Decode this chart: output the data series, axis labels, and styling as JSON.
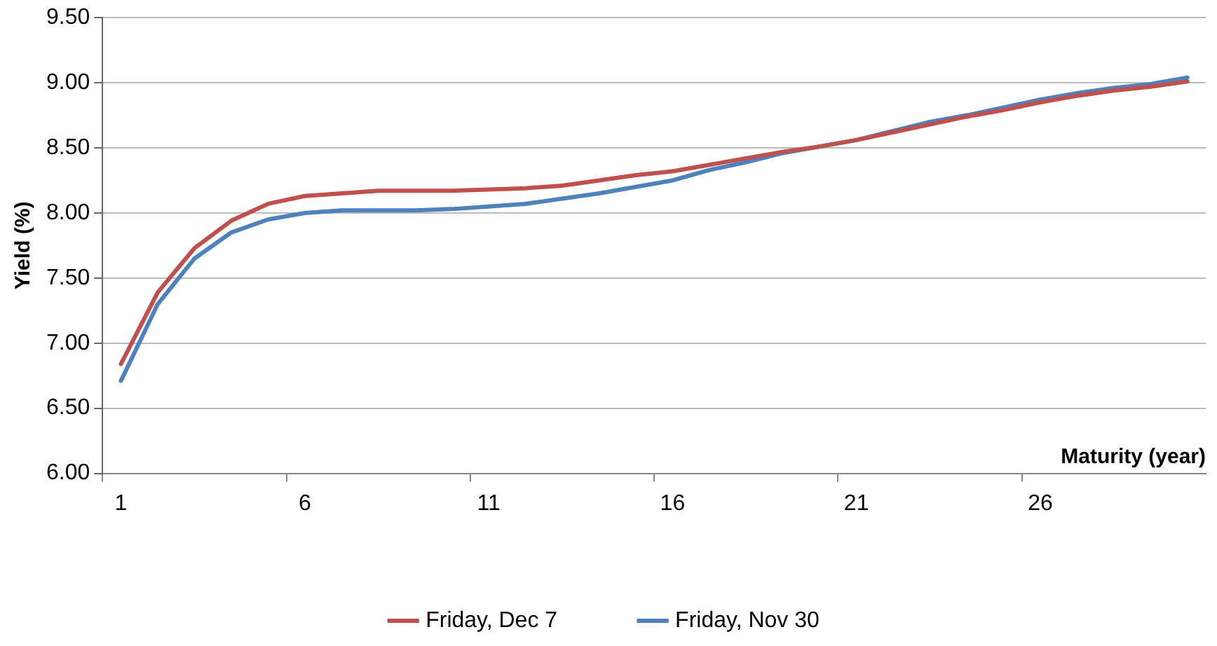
{
  "chart_data": {
    "type": "line",
    "xlabel": "Maturity (year)",
    "ylabel": "Yield (%)",
    "categories": [
      "1",
      null,
      null,
      null,
      null,
      "6",
      null,
      null,
      null,
      null,
      "11",
      null,
      null,
      null,
      null,
      "16",
      null,
      null,
      null,
      null,
      "21",
      null,
      null,
      null,
      null,
      "26",
      null,
      null,
      null,
      null
    ],
    "series": [
      {
        "name": "Friday, Dec 7",
        "color": "#c0504d",
        "values": [
          6.84,
          7.39,
          7.73,
          7.94,
          8.07,
          8.13,
          8.15,
          8.17,
          8.17,
          8.17,
          8.18,
          8.19,
          8.21,
          8.25,
          8.29,
          8.32,
          8.37,
          8.42,
          8.47,
          8.51,
          8.56,
          8.62,
          8.68,
          8.74,
          8.79,
          8.85,
          8.9,
          8.94,
          8.97,
          9.01
        ]
      },
      {
        "name": "Friday, Nov 30",
        "color": "#4f81bd",
        "values": [
          6.71,
          7.3,
          7.65,
          7.85,
          7.95,
          8.0,
          8.02,
          8.02,
          8.02,
          8.03,
          8.05,
          8.07,
          8.11,
          8.15,
          8.2,
          8.25,
          8.33,
          8.39,
          8.46,
          8.51,
          8.56,
          8.63,
          8.7,
          8.75,
          8.81,
          8.87,
          8.92,
          8.96,
          8.99,
          9.04
        ]
      }
    ],
    "ylim": [
      6,
      9.5
    ],
    "yticks": [
      {
        "value": 6,
        "label": "6.00"
      },
      {
        "value": 6.5,
        "label": "6.50"
      },
      {
        "value": 7,
        "label": "7.00"
      },
      {
        "value": 7.5,
        "label": "7.50"
      },
      {
        "value": 8,
        "label": "8.00"
      },
      {
        "value": 8.5,
        "label": "8.50"
      },
      {
        "value": 9,
        "label": "9.00"
      },
      {
        "value": 9.5,
        "label": "9.50"
      }
    ],
    "grid": "y",
    "legend": "bottom",
    "marker": "none",
    "line_style": "solid"
  }
}
